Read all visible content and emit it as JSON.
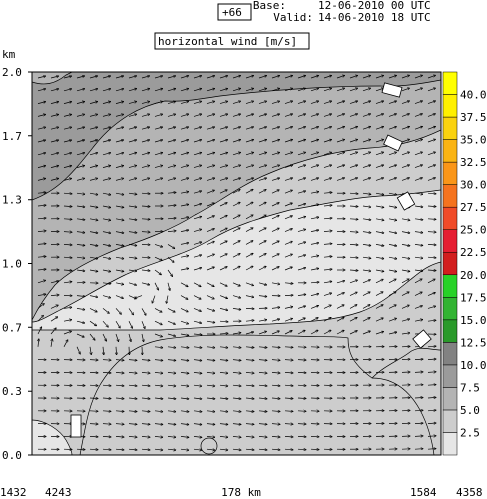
{
  "header": {
    "lead_time": "+66",
    "base_label": "Base:",
    "base_time": "12-06-2010  00 UTC",
    "valid_label": "Valid:",
    "valid_time": "14-06-2010  18 UTC",
    "field_title": "horizontal wind [m/s]"
  },
  "chart_data": {
    "type": "heatmap",
    "title": "horizontal wind [m/s]",
    "ylabel": "km",
    "ylim": [
      0.0,
      2.0
    ],
    "yticks": [
      "0.0",
      "0.3",
      "0.7",
      "1.0",
      "1.3",
      "1.7",
      "2.0"
    ],
    "ytick_values": [
      0.0,
      0.333,
      0.667,
      1.0,
      1.333,
      1.667,
      2.0
    ],
    "x_bottom_labels": {
      "left_station": "1432",
      "left_height": "4243",
      "center_distance": "178 km",
      "right_station": "1584",
      "right_height": "4358"
    },
    "colorbar": {
      "levels": [
        "2.5",
        "5.0",
        "7.5",
        "10.0",
        "12.5",
        "15.0",
        "17.5",
        "20.0",
        "22.5",
        "25.0",
        "27.5",
        "30.0",
        "32.5",
        "35.0",
        "37.5",
        "40.0"
      ],
      "level_values": [
        2.5,
        5.0,
        7.5,
        10.0,
        12.5,
        15.0,
        17.5,
        20.0,
        22.5,
        25.0,
        27.5,
        30.0,
        32.5,
        35.0,
        37.5,
        40.0
      ],
      "colors": [
        "#e6e6e6",
        "#cdcdcd",
        "#b4b4b4",
        "#9b9b9b",
        "#828282",
        "#2a9a2a",
        "#32b432",
        "#28d228",
        "#d21e1e",
        "#e61e32",
        "#f04b28",
        "#f5731e",
        "#fa9619",
        "#fab414",
        "#fad20f",
        "#fff000",
        "#ffff00"
      ]
    },
    "wind_regions": [
      {
        "range": "0-2.5 m/s",
        "color": "#e6e6e6"
      },
      {
        "range": "2.5-5.0 m/s",
        "color": "#cdcdcd"
      },
      {
        "range": "5.0-7.5 m/s",
        "color": "#b4b4b4"
      },
      {
        "range": "7.5-10.0 m/s",
        "color": "#9b9b9b"
      }
    ]
  }
}
